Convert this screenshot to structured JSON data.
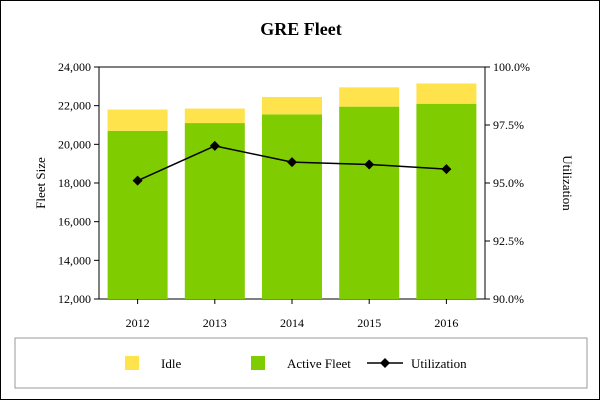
{
  "chart_data": {
    "type": "bar",
    "title": "GRE Fleet",
    "categories": [
      "2012",
      "2013",
      "2014",
      "2015",
      "2016"
    ],
    "series": [
      {
        "name": "Active Fleet",
        "type": "bar",
        "stack": "fleet",
        "axis": "left",
        "color": "#7fcc00",
        "values": [
          20700,
          21100,
          21550,
          21950,
          22100
        ]
      },
      {
        "name": "Idle",
        "type": "bar",
        "stack": "fleet",
        "axis": "left",
        "color": "#ffe34d",
        "values": [
          1100,
          750,
          900,
          1000,
          1050
        ]
      },
      {
        "name": "Utilization",
        "type": "line",
        "axis": "right",
        "color": "#000000",
        "marker": "diamond",
        "values": [
          95.1,
          96.6,
          95.9,
          95.8,
          95.6
        ]
      }
    ],
    "ylabel": "Fleet Size",
    "y2label": "Utilization",
    "ylim": [
      12000,
      24000
    ],
    "y2lim": [
      90.0,
      100.0
    ],
    "yticks": [
      "24,000",
      "22,000",
      "20,000",
      "18,000",
      "16,000",
      "14,000",
      "12,000"
    ],
    "y2ticks": [
      "100.0%",
      "97.5%",
      "95.0%",
      "92.5%",
      "90.0%"
    ],
    "legend_position": "bottom",
    "legend": [
      "Idle",
      "Active Fleet",
      "Utilization"
    ],
    "grid": false
  }
}
